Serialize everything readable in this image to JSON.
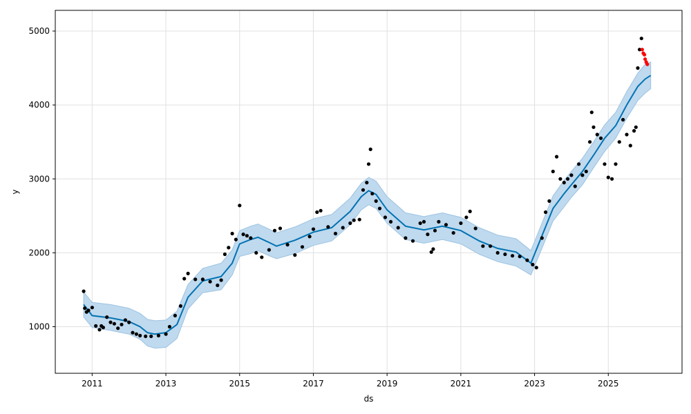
{
  "chart_data": {
    "type": "scatter",
    "xlabel": "ds",
    "ylabel": "y",
    "xlim": [
      2010.0,
      2027.0
    ],
    "ylim": [
      370,
      5280
    ],
    "grid": true,
    "x_ticks": [
      2011,
      2013,
      2015,
      2017,
      2019,
      2021,
      2023,
      2025
    ],
    "x_tick_labels": [
      "2011",
      "2013",
      "2015",
      "2017",
      "2019",
      "2021",
      "2023",
      "2025"
    ],
    "y_ticks": [
      1000,
      2000,
      3000,
      4000,
      5000
    ],
    "y_tick_labels": [
      "1000",
      "2000",
      "3000",
      "4000",
      "5000"
    ],
    "colors": {
      "observed": "#000000",
      "forecast": "#0072B2",
      "uncertainty": "#BFD9EE",
      "uncertainty_edge": "#9CC3E2",
      "recent_actual": "#FF0000",
      "grid": "#E0E0E0"
    },
    "series": [
      {
        "role": "observed",
        "x": [
          2010.77,
          2010.8,
          2010.85,
          2010.9,
          2011.0,
          2011.1,
          2011.2,
          2011.25,
          2011.3,
          2011.4,
          2011.5,
          2011.6,
          2011.7,
          2011.8,
          2011.9,
          2012.0,
          2012.1,
          2012.2,
          2012.3,
          2012.45,
          2012.6,
          2012.8,
          2013.0,
          2013.1,
          2013.25,
          2013.4,
          2013.5,
          2013.6,
          2013.8,
          2014.0,
          2014.2,
          2014.4,
          2014.5,
          2014.6,
          2014.7,
          2014.8,
          2014.9,
          2015.0,
          2015.1,
          2015.2,
          2015.3,
          2015.45,
          2015.6,
          2015.8,
          2015.95,
          2016.1,
          2016.3,
          2016.5,
          2016.7,
          2016.9,
          2017.0,
          2017.1,
          2017.2,
          2017.4,
          2017.6,
          2017.8,
          2018.0,
          2018.1,
          2018.25,
          2018.35,
          2018.45,
          2018.5,
          2018.55,
          2018.6,
          2018.7,
          2018.8,
          2018.95,
          2019.1,
          2019.3,
          2019.5,
          2019.7,
          2019.9,
          2020.0,
          2020.1,
          2020.2,
          2020.25,
          2020.3,
          2020.4,
          2020.6,
          2020.8,
          2021.0,
          2021.15,
          2021.25,
          2021.4,
          2021.6,
          2021.8,
          2022.0,
          2022.2,
          2022.4,
          2022.6,
          2022.8,
          2022.95,
          2023.05,
          2023.2,
          2023.3,
          2023.4,
          2023.5,
          2023.6,
          2023.7,
          2023.8,
          2023.9,
          2024.0,
          2024.1,
          2024.2,
          2024.3,
          2024.4,
          2024.5,
          2024.55,
          2024.6,
          2024.7,
          2024.8,
          2024.9,
          2025.0,
          2025.1,
          2025.2,
          2025.3,
          2025.4,
          2025.5,
          2025.6,
          2025.7,
          2025.75,
          2025.8,
          2025.85,
          2025.9
        ],
        "y": [
          1480,
          1250,
          1200,
          1220,
          1260,
          1010,
          960,
          1010,
          990,
          1130,
          1060,
          1040,
          980,
          1030,
          1090,
          1060,
          920,
          900,
          880,
          870,
          870,
          880,
          900,
          1000,
          1150,
          1280,
          1650,
          1720,
          1640,
          1640,
          1610,
          1560,
          1630,
          1980,
          2070,
          2260,
          2180,
          2640,
          2250,
          2230,
          2200,
          2000,
          1940,
          2040,
          2300,
          2330,
          2110,
          1970,
          2080,
          2220,
          2320,
          2550,
          2570,
          2350,
          2260,
          2340,
          2400,
          2440,
          2450,
          2850,
          2950,
          3200,
          3400,
          2800,
          2700,
          2600,
          2480,
          2420,
          2340,
          2200,
          2160,
          2400,
          2420,
          2250,
          2010,
          2050,
          2300,
          2420,
          2380,
          2270,
          2400,
          2480,
          2560,
          2330,
          2090,
          2090,
          2000,
          1980,
          1960,
          1950,
          1900,
          1840,
          1800,
          2200,
          2550,
          2700,
          3100,
          3300,
          3000,
          2950,
          3000,
          3050,
          2900,
          3200,
          3050,
          3100,
          3500,
          3900,
          3700,
          3600,
          3550,
          3200,
          3020,
          3000,
          3200,
          3500,
          3800,
          3600,
          3450,
          3650,
          3700,
          4500,
          4750,
          4900
        ]
      },
      {
        "role": "forecast",
        "x": [
          2010.77,
          2011.0,
          2011.5,
          2012.0,
          2012.3,
          2012.5,
          2012.7,
          2013.0,
          2013.3,
          2013.6,
          2014.0,
          2014.5,
          2014.8,
          2015.0,
          2015.3,
          2015.5,
          2015.8,
          2016.0,
          2016.5,
          2017.0,
          2017.5,
          2018.0,
          2018.3,
          2018.5,
          2018.7,
          2019.0,
          2019.5,
          2020.0,
          2020.5,
          2021.0,
          2021.5,
          2022.0,
          2022.5,
          2022.9,
          2023.2,
          2023.5,
          2023.8,
          2024.0,
          2024.3,
          2024.6,
          2024.9,
          2025.2,
          2025.5,
          2025.8,
          2026.0,
          2026.15
        ],
        "y": [
          1300,
          1150,
          1120,
          1070,
          1000,
          920,
          900,
          920,
          1030,
          1400,
          1620,
          1680,
          1860,
          2120,
          2180,
          2210,
          2140,
          2090,
          2170,
          2280,
          2340,
          2560,
          2760,
          2840,
          2790,
          2580,
          2360,
          2310,
          2360,
          2300,
          2160,
          2060,
          2010,
          1860,
          2230,
          2600,
          2800,
          2920,
          3100,
          3320,
          3550,
          3720,
          4000,
          4250,
          4350,
          4400
        ],
        "lower": [
          1130,
          990,
          950,
          900,
          830,
          740,
          710,
          720,
          840,
          1240,
          1460,
          1500,
          1700,
          1950,
          1990,
          2030,
          1960,
          1920,
          1990,
          2100,
          2160,
          2380,
          2580,
          2650,
          2600,
          2400,
          2180,
          2130,
          2180,
          2120,
          1980,
          1880,
          1820,
          1700,
          2060,
          2430,
          2620,
          2750,
          2920,
          3150,
          3370,
          3550,
          3820,
          4060,
          4160,
          4220
        ],
        "upper": [
          1470,
          1330,
          1300,
          1250,
          1180,
          1100,
          1080,
          1090,
          1210,
          1570,
          1790,
          1860,
          2040,
          2300,
          2360,
          2390,
          2320,
          2270,
          2350,
          2460,
          2520,
          2740,
          2940,
          3020,
          2970,
          2760,
          2540,
          2490,
          2540,
          2480,
          2340,
          2240,
          2190,
          2030,
          2400,
          2770,
          2980,
          3100,
          3280,
          3500,
          3730,
          3900,
          4180,
          4430,
          4550,
          4580
        ]
      },
      {
        "role": "recent_actual",
        "x": [
          2025.92,
          2025.95,
          2025.98,
          2026.0,
          2026.03,
          2026.06
        ],
        "y": [
          4750,
          4700,
          4680,
          4620,
          4580,
          4550
        ]
      }
    ]
  }
}
